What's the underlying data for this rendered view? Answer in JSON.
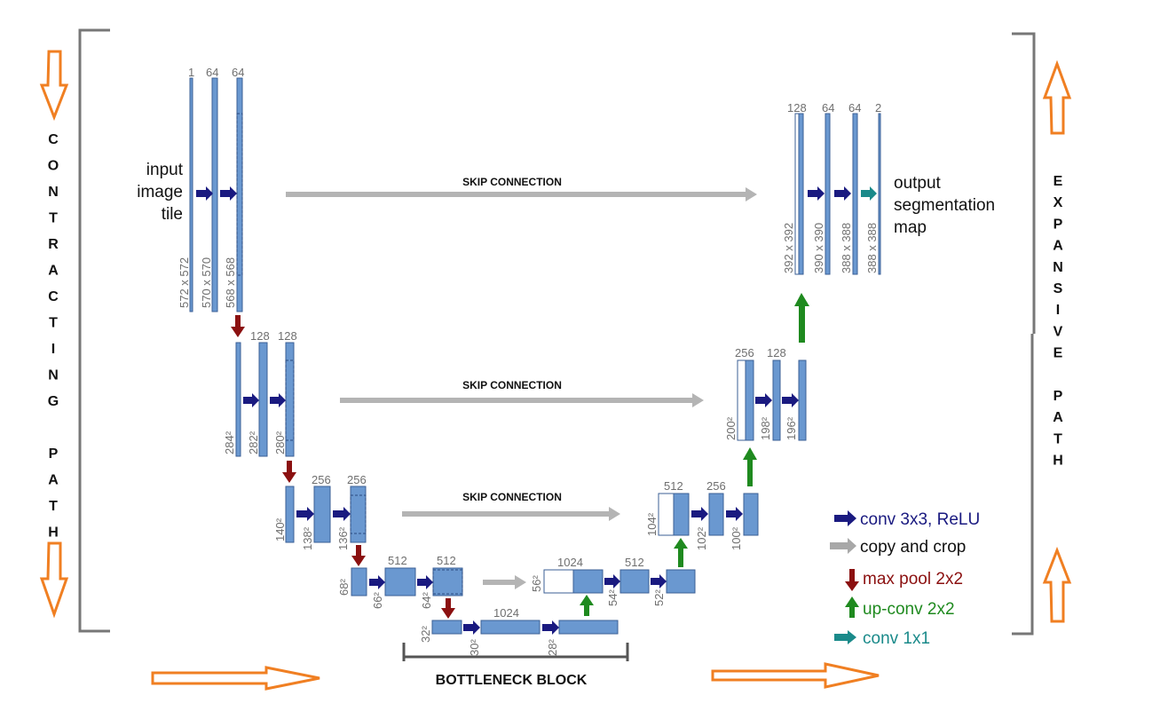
{
  "input_text": [
    "input",
    "image",
    "tile"
  ],
  "output_text": [
    "output",
    "segmentation",
    "map"
  ],
  "skip_label": "SKIP CONNECTION",
  "bottleneck_label": "BOTTLENECK BLOCK",
  "contracting_label": "CONTRACTING PATH",
  "expansive_label": "EXPANSIVE PATH",
  "channels": {
    "l1": [
      "1",
      "64",
      "64"
    ],
    "l2": [
      "128",
      "128"
    ],
    "l3": [
      "256",
      "256"
    ],
    "l4": [
      "512",
      "512"
    ],
    "bottleneck": "1024",
    "e4": [
      "1024",
      "512"
    ],
    "e3": [
      "512",
      "256"
    ],
    "e2": [
      "256",
      "128"
    ],
    "e1": [
      "128",
      "64",
      "64",
      "2"
    ]
  },
  "sizes": {
    "l1": [
      "572 x 572",
      "570 x 570",
      "568 x 568"
    ],
    "l2": [
      "284²",
      "282²",
      "280²"
    ],
    "l3": [
      "140²",
      "138²",
      "136²"
    ],
    "l4": [
      "68²",
      "66²",
      "64²"
    ],
    "bottleneck": [
      "32²",
      "30²",
      "28²"
    ],
    "e4": [
      "56²",
      "54²",
      "52²"
    ],
    "e3": [
      "104²",
      "102²",
      "100²"
    ],
    "e2": [
      "200²",
      "198²",
      "196²"
    ],
    "e1": [
      "392 x 392",
      "390 x 390",
      "388 x 388",
      "388 x 388"
    ]
  },
  "legend": [
    {
      "label": "conv 3x3, ReLU",
      "color": "#1a1a80",
      "icon": "arrow-right-icon"
    },
    {
      "label": "copy and crop",
      "color": "#a8a8a8",
      "icon": "arrow-right-icon"
    },
    {
      "label": "max pool 2x2",
      "color": "#8b1010",
      "icon": "arrow-down-icon"
    },
    {
      "label": "up-conv 2x2",
      "color": "#1f8a1f",
      "icon": "arrow-up-icon"
    },
    {
      "label": "conv 1x1",
      "color": "#1a8a8a",
      "icon": "arrow-right-icon"
    }
  ],
  "colors": {
    "block": "#6a98d0",
    "conv": "#1a1a80",
    "copy": "#a8a8a8",
    "pool": "#8b1010",
    "upconv": "#1f8a1f",
    "conv1x1": "#1a8a8a",
    "flow_arrow": "#f07f22",
    "bracket": "#777777"
  }
}
